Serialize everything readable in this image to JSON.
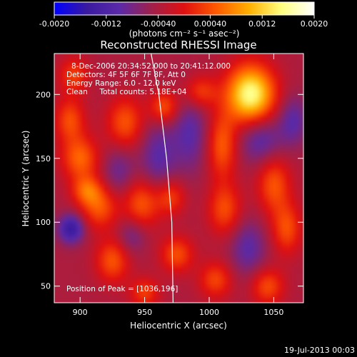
{
  "chart_data": {
    "type": "heatmap",
    "title": "Reconstructed RHESSI Image",
    "xlabel": "Heliocentric X (arcsec)",
    "ylabel": "Heliocentric Y (arcsec)",
    "xlim": [
      880,
      1073
    ],
    "ylim": [
      37,
      232
    ],
    "x_ticks": [
      900,
      950,
      1000,
      1050
    ],
    "y_ticks": [
      50,
      100,
      150,
      200
    ],
    "x_tick_labels": [
      "900",
      "950",
      "1000",
      "1050"
    ],
    "y_tick_labels": [
      "50",
      "100",
      "150",
      "200"
    ],
    "colorbar": {
      "range": [
        -0.002,
        0.002
      ],
      "ticks": [
        -0.002,
        -0.0012,
        -0.0004,
        0.0004,
        0.0012,
        0.002
      ],
      "tick_labels": [
        "-0.0020",
        "-0.0012",
        "-0.00040",
        "0.00040",
        "0.0012",
        "0.0020"
      ],
      "unit_label": "(photons cm⁻² s⁻¹ asec⁻²)",
      "colors": [
        "#0000ff",
        "#3a1aa0",
        "#5a2aa8",
        "#a0204a",
        "#e01010",
        "#ff5a00",
        "#ffb000",
        "#ffff80",
        "#ffffff"
      ]
    },
    "annotations": [
      "8-Dec-2006 20:34:52.000 to 20:41:12.000",
      "Detectors: 4F 5F 6F 7F 8F, Att 0",
      "Energy Range: 6.0 - 12.0 keV",
      "Clean     Total counts: 5.18E+04"
    ],
    "peak_label": "Position of Peak = [1036,196]",
    "peak": [
      1036,
      196
    ],
    "limb": [
      [
        955,
        232
      ],
      [
        961,
        200
      ],
      [
        967,
        150
      ],
      [
        971,
        100
      ],
      [
        972,
        37
      ]
    ],
    "sources": [
      {
        "x": 1032,
        "y": 200,
        "sx": 13,
        "sy": 16,
        "amp": 0.002
      },
      {
        "x": 993,
        "y": 202,
        "sx": 9,
        "sy": 9,
        "amp": 0.00075
      },
      {
        "x": 965,
        "y": 190,
        "sx": 8,
        "sy": 9,
        "amp": 0.0009
      },
      {
        "x": 935,
        "y": 178,
        "sx": 10,
        "sy": 14,
        "amp": 0.00085
      },
      {
        "x": 900,
        "y": 150,
        "sx": 10,
        "sy": 12,
        "amp": 0.00095
      },
      {
        "x": 892,
        "y": 180,
        "sx": 8,
        "sy": 12,
        "amp": 0.0008
      },
      {
        "x": 915,
        "y": 112,
        "sx": 10,
        "sy": 12,
        "amp": 0.00085
      },
      {
        "x": 905,
        "y": 125,
        "sx": 8,
        "sy": 8,
        "amp": 0.0008
      },
      {
        "x": 948,
        "y": 115,
        "sx": 10,
        "sy": 14,
        "amp": 0.0009
      },
      {
        "x": 970,
        "y": 120,
        "sx": 8,
        "sy": 10,
        "amp": 0.00075
      },
      {
        "x": 1010,
        "y": 160,
        "sx": 8,
        "sy": 18,
        "amp": 0.0009
      },
      {
        "x": 1012,
        "y": 110,
        "sx": 9,
        "sy": 14,
        "amp": 0.0008
      },
      {
        "x": 1050,
        "y": 130,
        "sx": 9,
        "sy": 16,
        "amp": 0.00085
      },
      {
        "x": 1060,
        "y": 95,
        "sx": 8,
        "sy": 14,
        "amp": 0.0008
      },
      {
        "x": 925,
        "y": 70,
        "sx": 9,
        "sy": 12,
        "amp": 0.00085
      },
      {
        "x": 975,
        "y": 75,
        "sx": 9,
        "sy": 10,
        "amp": 0.0008
      },
      {
        "x": 1005,
        "y": 55,
        "sx": 9,
        "sy": 10,
        "amp": 0.00075
      },
      {
        "x": 1045,
        "y": 50,
        "sx": 9,
        "sy": 10,
        "amp": 0.0008
      },
      {
        "x": 895,
        "y": 215,
        "sx": 8,
        "sy": 10,
        "amp": 0.0007
      },
      {
        "x": 950,
        "y": 45,
        "sx": 8,
        "sy": 8,
        "amp": 0.0007
      },
      {
        "x": 893,
        "y": 95,
        "sx": 7,
        "sy": 8,
        "amp": -0.0011
      },
      {
        "x": 960,
        "y": 150,
        "sx": 10,
        "sy": 22,
        "amp": -0.0006
      },
      {
        "x": 985,
        "y": 170,
        "sx": 10,
        "sy": 22,
        "amp": -0.0006
      },
      {
        "x": 1040,
        "y": 165,
        "sx": 12,
        "sy": 14,
        "amp": -0.0007
      },
      {
        "x": 1065,
        "y": 180,
        "sx": 8,
        "sy": 14,
        "amp": -0.0006
      },
      {
        "x": 930,
        "y": 140,
        "sx": 9,
        "sy": 14,
        "amp": -0.0005
      },
      {
        "x": 1030,
        "y": 80,
        "sx": 10,
        "sy": 16,
        "amp": -0.0006
      },
      {
        "x": 940,
        "y": 90,
        "sx": 8,
        "sy": 10,
        "amp": -0.0005
      }
    ]
  },
  "footer": {
    "timestamp": "19-Jul-2013 00:03"
  }
}
